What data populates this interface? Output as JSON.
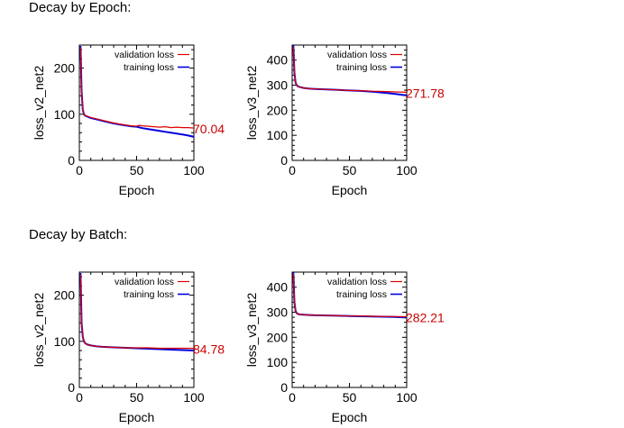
{
  "sections": [
    {
      "title": "Decay by Epoch:"
    },
    {
      "title": "Decay by Batch:"
    }
  ],
  "colors": {
    "validation": "#dd0000",
    "training": "#0000dd",
    "axis": "#000000",
    "end_label": "#cc0000"
  },
  "chart_data": [
    {
      "type": "line",
      "section": "Decay by Epoch:",
      "xlabel": "Epoch",
      "ylabel": "loss_v2_net2",
      "xlim": [
        0,
        100
      ],
      "ylim": [
        0,
        250
      ],
      "xticks": [
        0,
        50,
        100
      ],
      "yticks": [
        0,
        100,
        200
      ],
      "legend_position": "top-right",
      "end_value_label": "70.04",
      "series": [
        {
          "name": "validation loss",
          "color": "#dd0000",
          "x": [
            1,
            2,
            3,
            4,
            5,
            8,
            10,
            15,
            20,
            25,
            30,
            35,
            40,
            45,
            50,
            52,
            55,
            60,
            65,
            70,
            75,
            80,
            85,
            90,
            95,
            100
          ],
          "y": [
            245,
            150,
            110,
            100,
            97,
            95,
            93,
            90,
            87,
            84,
            81,
            79,
            77,
            75,
            74,
            76,
            75,
            74,
            73,
            72,
            73,
            71,
            72,
            71,
            71,
            70.04
          ]
        },
        {
          "name": "training loss",
          "color": "#0000dd",
          "x": [
            1,
            2,
            3,
            4,
            5,
            8,
            10,
            15,
            20,
            25,
            30,
            35,
            40,
            45,
            50,
            55,
            60,
            65,
            70,
            75,
            80,
            85,
            90,
            95,
            100
          ],
          "y": [
            248,
            150,
            110,
            100,
            97,
            94,
            92,
            89,
            86,
            83,
            80,
            78,
            76,
            74,
            73,
            70,
            68,
            66,
            64,
            62,
            60,
            58,
            56,
            54,
            51
          ]
        }
      ]
    },
    {
      "type": "line",
      "section": "Decay by Epoch:",
      "xlabel": "Epoch",
      "ylabel": "loss_v3_net2",
      "xlim": [
        0,
        100
      ],
      "ylim": [
        0,
        460
      ],
      "xticks": [
        0,
        50,
        100
      ],
      "yticks": [
        0,
        100,
        200,
        300,
        400
      ],
      "legend_position": "top-right",
      "end_value_label": "271.78",
      "series": [
        {
          "name": "validation loss",
          "color": "#dd0000",
          "x": [
            1,
            2,
            3,
            4,
            5,
            7,
            10,
            15,
            20,
            30,
            40,
            50,
            60,
            70,
            80,
            90,
            100
          ],
          "y": [
            455,
            350,
            310,
            300,
            295,
            292,
            289,
            286,
            285,
            283,
            281,
            279,
            278,
            276,
            275,
            273,
            271.78
          ]
        },
        {
          "name": "training loss",
          "color": "#0000dd",
          "x": [
            1,
            2,
            3,
            4,
            5,
            7,
            10,
            15,
            20,
            30,
            40,
            50,
            60,
            70,
            80,
            90,
            100
          ],
          "y": [
            460,
            350,
            310,
            300,
            295,
            292,
            289,
            286,
            285,
            283,
            281,
            279,
            277,
            274,
            270,
            265,
            259
          ]
        }
      ]
    },
    {
      "type": "line",
      "section": "Decay by Batch:",
      "xlabel": "Epoch",
      "ylabel": "loss_v2_net2",
      "xlim": [
        0,
        100
      ],
      "ylim": [
        0,
        250
      ],
      "xticks": [
        0,
        50,
        100
      ],
      "yticks": [
        0,
        100,
        200
      ],
      "legend_position": "top-right",
      "end_value_label": "84.78",
      "series": [
        {
          "name": "validation loss",
          "color": "#dd0000",
          "x": [
            1,
            2,
            3,
            4,
            5,
            7,
            10,
            15,
            20,
            30,
            40,
            50,
            60,
            70,
            80,
            90,
            100
          ],
          "y": [
            245,
            140,
            110,
            100,
            96,
            93,
            91,
            89,
            88,
            87,
            86,
            86,
            86,
            85,
            85,
            85,
            84.78
          ]
        },
        {
          "name": "training loss",
          "color": "#0000dd",
          "x": [
            1,
            2,
            3,
            4,
            5,
            7,
            10,
            15,
            20,
            30,
            40,
            50,
            60,
            70,
            80,
            90,
            100
          ],
          "y": [
            248,
            140,
            110,
            100,
            96,
            93,
            91,
            89,
            88,
            87,
            86,
            85,
            84,
            83,
            82,
            81,
            80
          ]
        }
      ]
    },
    {
      "type": "line",
      "section": "Decay by Batch:",
      "xlabel": "Epoch",
      "ylabel": "loss_v3_net2",
      "xlim": [
        0,
        100
      ],
      "ylim": [
        0,
        460
      ],
      "xticks": [
        0,
        50,
        100
      ],
      "yticks": [
        0,
        100,
        200,
        300,
        400
      ],
      "legend_position": "top-right",
      "end_value_label": "282.21",
      "series": [
        {
          "name": "validation loss",
          "color": "#dd0000",
          "x": [
            1,
            2,
            3,
            4,
            5,
            7,
            10,
            15,
            20,
            30,
            40,
            50,
            60,
            70,
            80,
            90,
            100
          ],
          "y": [
            455,
            340,
            305,
            296,
            293,
            291,
            290,
            289,
            288,
            287,
            286,
            285,
            285,
            284,
            283,
            283,
            282.21
          ]
        },
        {
          "name": "training loss",
          "color": "#0000dd",
          "x": [
            1,
            2,
            3,
            4,
            5,
            7,
            10,
            15,
            20,
            30,
            40,
            50,
            60,
            70,
            80,
            90,
            100
          ],
          "y": [
            460,
            340,
            305,
            296,
            293,
            291,
            290,
            289,
            288,
            287,
            286,
            285,
            284,
            283,
            282,
            281,
            279
          ]
        }
      ]
    }
  ]
}
